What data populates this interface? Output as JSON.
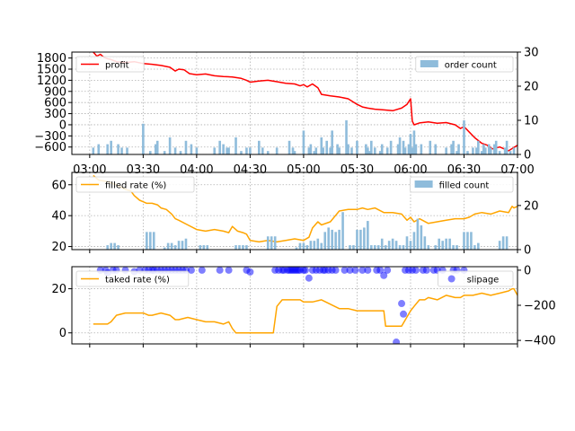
{
  "chart_data": [
    {
      "type": "line",
      "panel": "top",
      "x_start_min": 170,
      "x_end_min": 420,
      "xticks": [
        "03:00",
        "03:30",
        "04:00",
        "04:30",
        "05:00",
        "05:30",
        "06:00",
        "06:30",
        "07:00"
      ],
      "xtick_values_min": [
        180,
        210,
        240,
        270,
        300,
        330,
        360,
        390,
        420
      ],
      "ylim": [
        -800,
        1960
      ],
      "yticks": [
        -600,
        -300,
        0,
        300,
        600,
        900,
        1200,
        1500,
        1800
      ],
      "ytick_labels": [
        "−600",
        "−300",
        "0",
        "300",
        "600",
        "900",
        "1200",
        "1500",
        "1800"
      ],
      "y2lim": [
        0,
        30
      ],
      "y2ticks": [
        0,
        10,
        20,
        30
      ],
      "grid": true,
      "legend_left": {
        "label": "profit",
        "color": "#ff0000",
        "placement": "upper-left"
      },
      "legend_right": {
        "label": "order count",
        "color": "#8fbcdb",
        "placement": "upper-right"
      },
      "series": [
        {
          "name": "profit",
          "axis": "left",
          "color": "#ff0000",
          "x": [
            182,
            184,
            186,
            188,
            190,
            192,
            195,
            200,
            205,
            210,
            215,
            220,
            225,
            228,
            230,
            233,
            236,
            240,
            245,
            250,
            255,
            260,
            265,
            268,
            270,
            275,
            280,
            285,
            290,
            295,
            298,
            300,
            302,
            305,
            308,
            310,
            315,
            320,
            325,
            330,
            333,
            336,
            340,
            345,
            350,
            355,
            358,
            360,
            361,
            362,
            365,
            370,
            375,
            380,
            385,
            388,
            390,
            393,
            396,
            400,
            403,
            406,
            410,
            415,
            420
          ],
          "values": [
            1960,
            1850,
            1900,
            1820,
            1780,
            1760,
            1700,
            1680,
            1700,
            1650,
            1630,
            1600,
            1550,
            1450,
            1500,
            1480,
            1380,
            1350,
            1370,
            1320,
            1300,
            1290,
            1250,
            1200,
            1150,
            1180,
            1200,
            1160,
            1120,
            1100,
            1050,
            1080,
            1020,
            1100,
            1000,
            820,
            780,
            750,
            700,
            550,
            480,
            450,
            420,
            400,
            380,
            450,
            550,
            700,
            100,
            0,
            50,
            80,
            40,
            60,
            0,
            -100,
            -50,
            -200,
            -350,
            -500,
            -550,
            -650,
            -600,
            -700,
            -550
          ]
        },
        {
          "name": "order count",
          "axis": "right",
          "color": "#8fbcdb",
          "type": "bar",
          "x": [
            182,
            185,
            190,
            192,
            196,
            198,
            201,
            210,
            214,
            217,
            218,
            222,
            225,
            228,
            231,
            234,
            237,
            240,
            250,
            253,
            255,
            257,
            258,
            262,
            265,
            268,
            270,
            275,
            277,
            280,
            285,
            292,
            294,
            295,
            300,
            303,
            304,
            306,
            307,
            310,
            311,
            313,
            315,
            316,
            319,
            320,
            324,
            325,
            327,
            330,
            335,
            336,
            337,
            338,
            340,
            343,
            344,
            347,
            349,
            353,
            354,
            356,
            357,
            359,
            360,
            361,
            362,
            363,
            366,
            371,
            374,
            380,
            383,
            384,
            386,
            387,
            390,
            392,
            395,
            397,
            398,
            400,
            401,
            402,
            404,
            405,
            407,
            408,
            410,
            413,
            414,
            416,
            418
          ],
          "values": [
            2,
            3,
            3,
            4,
            3,
            2,
            2,
            9,
            1,
            3,
            4,
            1,
            5,
            2,
            1,
            4,
            3,
            2,
            2,
            4,
            3,
            2,
            2,
            5,
            1,
            2,
            2,
            4,
            2,
            1,
            2,
            4,
            2,
            1,
            7,
            2,
            3,
            1,
            2,
            5,
            2,
            4,
            2,
            7,
            3,
            2,
            10,
            3,
            2,
            4,
            3,
            2,
            1,
            4,
            2,
            1,
            3,
            2,
            4,
            3,
            5,
            4,
            2,
            3,
            6,
            2,
            7,
            3,
            3,
            4,
            3,
            2,
            3,
            4,
            1,
            3,
            10,
            1,
            2,
            2,
            4,
            1,
            3,
            2,
            3,
            2,
            3,
            4,
            1,
            2,
            4,
            1,
            2
          ]
        }
      ]
    },
    {
      "type": "line",
      "panel": "middle",
      "ylim": [
        18,
        68
      ],
      "yticks": [
        20,
        40,
        60
      ],
      "y2lim": [
        0,
        35
      ],
      "y2ticks": [
        0,
        20
      ],
      "grid": true,
      "legend_left": {
        "label": "filled rate (%)",
        "color": "#ffa500",
        "placement": "upper-left"
      },
      "legend_right": {
        "label": "filled count",
        "color": "#8fbcdb",
        "placement": "upper-right"
      },
      "series": [
        {
          "name": "filled rate (%)",
          "axis": "left",
          "color": "#ffa500",
          "x": [
            182,
            185,
            190,
            195,
            200,
            203,
            205,
            208,
            210,
            212,
            215,
            218,
            220,
            223,
            226,
            228,
            230,
            235,
            240,
            245,
            250,
            255,
            258,
            260,
            263,
            266,
            268,
            270,
            275,
            280,
            285,
            290,
            295,
            300,
            303,
            305,
            308,
            310,
            315,
            320,
            325,
            330,
            333,
            336,
            340,
            345,
            350,
            355,
            358,
            360,
            362,
            365,
            370,
            375,
            380,
            385,
            390,
            393,
            396,
            400,
            405,
            410,
            415,
            417,
            418,
            420
          ],
          "values": [
            66,
            63,
            62,
            60,
            57,
            56,
            53,
            50,
            49,
            48,
            48,
            47,
            45,
            44,
            41,
            38,
            37,
            34,
            31,
            30,
            31,
            30,
            29,
            33,
            30,
            29,
            28,
            24,
            23,
            24,
            23,
            24,
            25,
            24,
            26,
            32,
            36,
            34,
            36,
            43,
            44,
            44,
            45,
            44,
            45,
            42,
            42,
            41,
            37,
            39,
            36,
            38,
            35,
            36,
            37,
            38,
            38,
            39,
            41,
            42,
            41,
            43,
            42,
            46,
            45,
            46
          ]
        },
        {
          "name": "filled count",
          "axis": "right",
          "color": "#8fbcdb",
          "type": "bar",
          "x": [
            190,
            192,
            194,
            196,
            212,
            214,
            216,
            222,
            224,
            226,
            228,
            230,
            232,
            234,
            242,
            244,
            246,
            262,
            264,
            266,
            268,
            280,
            282,
            284,
            296,
            298,
            300,
            302,
            304,
            306,
            308,
            310,
            312,
            314,
            316,
            318,
            320,
            322,
            326,
            328,
            330,
            332,
            334,
            336,
            338,
            340,
            342,
            344,
            346,
            348,
            350,
            352,
            354,
            356,
            358,
            360,
            362,
            364,
            366,
            368,
            370,
            374,
            376,
            378,
            380,
            382,
            384,
            386,
            390,
            392,
            394,
            396,
            398,
            410,
            412,
            414
          ],
          "values": [
            2,
            3,
            3,
            2,
            8,
            8,
            8,
            1,
            3,
            3,
            2,
            4,
            4,
            5,
            2,
            2,
            2,
            2,
            2,
            2,
            2,
            6,
            6,
            6,
            1,
            3,
            3,
            2,
            4,
            4,
            5,
            3,
            8,
            10,
            9,
            8,
            9,
            17,
            2,
            2,
            9,
            9,
            10,
            13,
            2,
            2,
            2,
            5,
            2,
            4,
            5,
            4,
            2,
            2,
            6,
            4,
            8,
            14,
            11,
            6,
            2,
            2,
            5,
            4,
            5,
            5,
            2,
            2,
            8,
            8,
            8,
            2,
            3,
            4,
            6,
            6
          ]
        }
      ]
    },
    {
      "type": "line",
      "panel": "bottom",
      "ylim": [
        -5,
        30
      ],
      "yticks": [
        0,
        20
      ],
      "y2lim": [
        -420,
        20
      ],
      "y2ticks": [
        -400,
        -200,
        0
      ],
      "y2tick_labels": [
        "−400",
        "−200",
        "0"
      ],
      "grid": true,
      "legend_left": {
        "label": "taked rate (%)",
        "color": "#ffa500",
        "placement": "upper-left"
      },
      "legend_right": {
        "label": "slipage",
        "color": "#0000ff",
        "placement": "upper-right"
      },
      "series": [
        {
          "name": "taked rate (%)",
          "axis": "left",
          "color": "#ffa500",
          "x": [
            182,
            185,
            190,
            192,
            195,
            200,
            205,
            210,
            213,
            215,
            220,
            225,
            228,
            230,
            235,
            240,
            245,
            250,
            255,
            258,
            260,
            262,
            265,
            268,
            270,
            275,
            280,
            283,
            285,
            288,
            290,
            295,
            298,
            300,
            305,
            310,
            315,
            320,
            325,
            330,
            335,
            340,
            345,
            346,
            348,
            350,
            355,
            360,
            362,
            365,
            368,
            370,
            375,
            380,
            385,
            388,
            390,
            395,
            400,
            405,
            410,
            415,
            417,
            418,
            420
          ],
          "values": [
            4,
            4,
            4,
            5,
            8,
            9,
            9,
            9,
            8,
            8,
            9,
            8,
            6,
            6,
            7,
            6,
            5,
            5,
            4,
            5,
            2,
            0,
            0,
            0,
            0,
            0,
            0,
            0,
            12,
            15,
            15,
            15,
            15,
            14,
            14,
            15,
            13,
            11,
            11,
            10,
            10,
            10,
            10,
            3,
            3,
            3,
            3,
            10,
            12,
            15,
            15,
            16,
            15,
            17,
            16,
            16,
            17,
            17,
            18,
            17,
            18,
            19,
            20,
            20,
            17
          ]
        },
        {
          "name": "slipage",
          "axis": "right",
          "color": "#0000ff",
          "type": "scatter",
          "x": [
            186,
            189,
            190,
            193,
            195,
            200,
            205,
            208,
            211,
            213,
            215,
            216,
            218,
            220,
            222,
            224,
            226,
            228,
            230,
            232,
            234,
            237,
            243,
            253,
            258,
            268,
            270,
            284,
            286,
            288,
            289,
            291,
            292,
            293,
            294,
            295,
            296,
            297,
            298,
            300,
            301,
            303,
            305,
            307,
            309,
            311,
            312,
            314,
            316,
            318,
            323,
            326,
            329,
            333,
            336,
            341,
            343,
            345,
            347,
            352,
            355,
            356,
            357,
            359,
            361,
            363,
            367,
            369,
            373,
            375,
            378,
            384,
            386,
            390
          ],
          "values": [
            0,
            0,
            -15,
            0,
            0,
            0,
            -8,
            0,
            0,
            0,
            0,
            0,
            0,
            0,
            0,
            0,
            0,
            0,
            0,
            0,
            0,
            0,
            0,
            0,
            0,
            0,
            -10,
            0,
            0,
            0,
            0,
            0,
            0,
            0,
            0,
            0,
            0,
            0,
            0,
            0,
            0,
            -45,
            0,
            0,
            0,
            0,
            0,
            0,
            0,
            0,
            0,
            0,
            0,
            0,
            0,
            0,
            0,
            -30,
            0,
            -410,
            -190,
            -250,
            0,
            0,
            0,
            0,
            0,
            0,
            0,
            0,
            0,
            0,
            0,
            0
          ]
        }
      ]
    }
  ]
}
